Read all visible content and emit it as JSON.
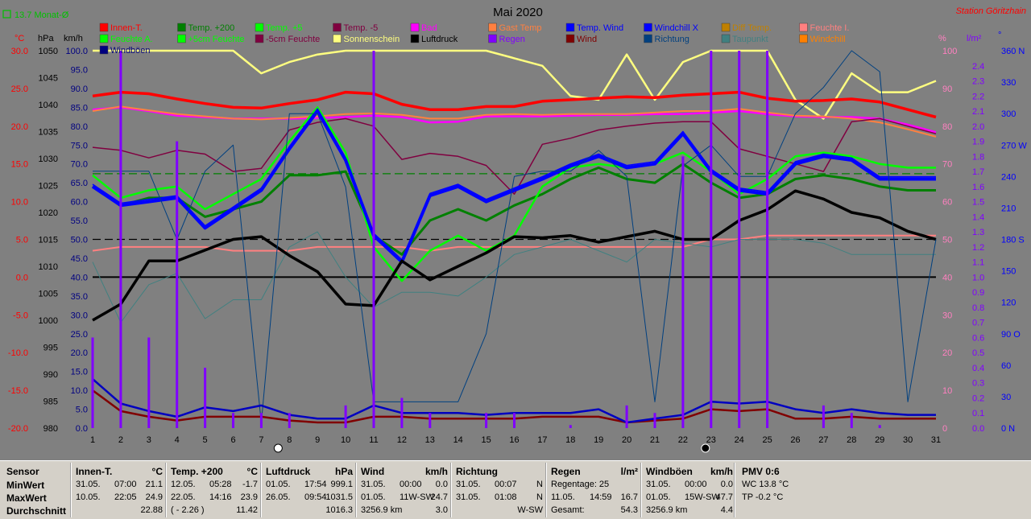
{
  "header": {
    "title": "Mai 2020",
    "station": "Station Göritzhain",
    "avg_indicator": "13.7 Monat-Ø"
  },
  "units": {
    "temp": "°C",
    "pressure": "hPa",
    "wind": "km/h",
    "percent": "%",
    "rain": "l/m²",
    "deg": "°"
  },
  "legend": [
    {
      "label": "Innen-T.",
      "color": "#ff0000"
    },
    {
      "label": "Temp. +200",
      "color": "#008000"
    },
    {
      "label": "Temp. +5",
      "color": "#00ff00"
    },
    {
      "label": "Temp. -5",
      "color": "#800040"
    },
    {
      "label": "Bad",
      "color": "#ff00ff"
    },
    {
      "label": "Gast Temp",
      "color": "#ff8040"
    },
    {
      "label": "Temp. Wind",
      "color": "#0000ff"
    },
    {
      "label": "Windchill X",
      "color": "#0000ff"
    },
    {
      "label": "Diff Temp.",
      "color": "#c08000"
    },
    {
      "label": "Feuchte I.",
      "color": "#ff8080"
    },
    {
      "label": "Feuchte A.",
      "color": "#00ff00"
    },
    {
      "label": "+5cm Feuchte",
      "color": "#00ff00"
    },
    {
      "label": "-5cm Feuchte",
      "color": "#800040"
    },
    {
      "label": "Sonnenschein",
      "color": "#ffff80"
    },
    {
      "label": "Luftdruck",
      "color": "#000000"
    },
    {
      "label": "Regen",
      "color": "#8000ff"
    },
    {
      "label": "Wind",
      "color": "#800000"
    },
    {
      "label": "Richtung",
      "color": "#004080"
    },
    {
      "label": "Taupunkt",
      "color": "#408080"
    },
    {
      "label": "Windchill",
      "color": "#ff8000"
    },
    {
      "label": "Windböen",
      "color": "#000080"
    }
  ],
  "axes": {
    "temp_ticks": [
      "30.0",
      "25.0",
      "20.0",
      "15.0",
      "10.0",
      "5.0",
      "0.0",
      "-5.0",
      "-10.0",
      "-15.0",
      "-20.0"
    ],
    "pressure_ticks": [
      "1050",
      "1045",
      "1040",
      "1035",
      "1030",
      "1025",
      "1020",
      "1015",
      "1010",
      "1005",
      "1000",
      "995",
      "990",
      "985",
      "980"
    ],
    "wind_ticks": [
      "100.0",
      "95.0",
      "90.0",
      "85.0",
      "80.0",
      "75.0",
      "70.0",
      "65.0",
      "60.0",
      "55.0",
      "50.0",
      "45.0",
      "40.0",
      "35.0",
      "30.0",
      "25.0",
      "20.0",
      "15.0",
      "10.0",
      "5.0",
      "0.0"
    ],
    "percent_ticks": [
      "100",
      "90",
      "80",
      "70",
      "60",
      "50",
      "40",
      "30",
      "20",
      "10",
      "0"
    ],
    "rain_ticks": [
      "2.4",
      "2.3",
      "2.2",
      "2.1",
      "2.0",
      "1.9",
      "1.8",
      "1.7",
      "1.6",
      "1.5",
      "1.4",
      "1.3",
      "1.2",
      "1.1",
      "1.0",
      "0.9",
      "0.8",
      "0.7",
      "0.6",
      "0.5",
      "0.4",
      "0.3",
      "0.2",
      "0.1",
      "0.0"
    ],
    "dir_ticks": [
      "360 N",
      "330",
      "300",
      "270 W",
      "240",
      "210",
      "180 S",
      "150",
      "120",
      "90 O",
      "60",
      "30",
      "0 N"
    ],
    "days": [
      "1",
      "2",
      "3",
      "4",
      "5",
      "6",
      "7",
      "8",
      "9",
      "10",
      "11",
      "12",
      "13",
      "14",
      "15",
      "16",
      "17",
      "18",
      "19",
      "20",
      "21",
      "22",
      "23",
      "24",
      "25",
      "26",
      "27",
      "28",
      "29",
      "30",
      "31"
    ]
  },
  "chart_data": {
    "type": "line",
    "title": "Mai 2020",
    "x": [
      1,
      2,
      3,
      4,
      5,
      6,
      7,
      8,
      9,
      10,
      11,
      12,
      13,
      14,
      15,
      16,
      17,
      18,
      19,
      20,
      21,
      22,
      23,
      24,
      25,
      26,
      27,
      28,
      29,
      30,
      31
    ],
    "xlim": [
      1,
      31
    ],
    "y_temp_lim": [
      -20,
      30
    ],
    "y_pressure_lim": [
      980,
      1050
    ],
    "y_wind_lim": [
      0,
      100
    ],
    "y_percent_lim": [
      0,
      100
    ],
    "y_rain_lim": [
      0,
      2.5
    ],
    "y_dir_lim": [
      0,
      360
    ],
    "series": [
      {
        "name": "Sonnenschein",
        "axis": "percent",
        "color": "#ffff80",
        "width": 2.5,
        "values": [
          100,
          100,
          100,
          100,
          100,
          100,
          94,
          97,
          99,
          100,
          100,
          100,
          100,
          100,
          100,
          98,
          96,
          88,
          87,
          99,
          87,
          97,
          100,
          100,
          100,
          87,
          82,
          94,
          89,
          89,
          92
        ]
      },
      {
        "name": "Innen-T.",
        "axis": "temp",
        "color": "#ff0000",
        "width": 3.5,
        "values": [
          24.0,
          24.5,
          24.3,
          23.6,
          23.0,
          22.5,
          22.4,
          23.0,
          23.5,
          24.5,
          24.3,
          22.9,
          22.2,
          22.2,
          22.6,
          22.6,
          23.3,
          23.5,
          23.7,
          23.9,
          23.8,
          24.1,
          24.3,
          24.5,
          23.7,
          23.3,
          23.4,
          23.6,
          23.2,
          22.2,
          21.2
        ]
      },
      {
        "name": "Bad",
        "axis": "temp",
        "color": "#ff00ff",
        "width": 2.5,
        "values": [
          22.2,
          22.5,
          22.0,
          21.4,
          21.2,
          21.0,
          21.0,
          21.0,
          21.1,
          21.2,
          21.4,
          21.2,
          20.5,
          20.6,
          21.3,
          21.3,
          21.3,
          21.4,
          21.5,
          21.5,
          21.6,
          21.6,
          21.8,
          22.0,
          21.6,
          21.3,
          21.2,
          21.2,
          21.0,
          20.2,
          19.2
        ]
      },
      {
        "name": "Gast Temp",
        "axis": "temp",
        "color": "#ff8040",
        "width": 2,
        "values": [
          22.0,
          22.6,
          22.1,
          21.6,
          21.3,
          21.0,
          20.9,
          21.1,
          21.3,
          21.6,
          21.7,
          21.5,
          21.0,
          21.0,
          21.5,
          21.6,
          21.5,
          21.6,
          21.6,
          21.6,
          21.8,
          22.0,
          22.0,
          22.3,
          21.8,
          21.4,
          21.3,
          21.0,
          20.5,
          19.6,
          18.6
        ]
      },
      {
        "name": "Feuchte I.",
        "axis": "percent",
        "color": "#ff8080",
        "width": 2,
        "values": [
          47,
          48,
          48,
          48,
          48,
          47,
          47,
          47,
          48,
          48,
          48,
          48,
          47,
          48,
          48,
          48,
          48,
          48,
          48,
          48,
          48,
          48,
          50,
          50,
          51,
          51,
          51,
          51,
          51,
          51,
          51
        ]
      },
      {
        "name": "Temp. -5",
        "axis": "temp",
        "color": "#800040",
        "width": 1.5,
        "values": [
          17.2,
          16.8,
          15.8,
          16.8,
          16.3,
          14.0,
          14.4,
          19.5,
          20.5,
          21.0,
          20.0,
          15.6,
          16.4,
          16.0,
          14.8,
          11.0,
          17.6,
          18.4,
          19.5,
          20.0,
          20.4,
          20.6,
          20.6,
          17.0,
          16.0,
          15.0,
          14.0,
          20.6,
          21.0,
          20.0,
          19.0
        ]
      },
      {
        "name": "Temp. +200",
        "axis": "temp",
        "color": "#008000",
        "width": 3,
        "values": [
          12.0,
          9.5,
          10.5,
          10.5,
          8.0,
          9.0,
          10.0,
          13.5,
          13.5,
          14.0,
          5.5,
          3.0,
          7.5,
          9.0,
          7.5,
          9.5,
          11.0,
          13.0,
          14.5,
          13.0,
          12.5,
          15.0,
          12.5,
          10.5,
          11.0,
          13.0,
          13.5,
          13.0,
          12.0,
          11.5,
          11.5
        ]
      },
      {
        "name": "Temp. +5",
        "axis": "temp",
        "color": "#00ff00",
        "width": 2.5,
        "values": [
          13.5,
          10.5,
          11.5,
          12.0,
          9.0,
          11.0,
          13.0,
          18.0,
          22.5,
          16.5,
          4.0,
          -0.5,
          3.5,
          5.5,
          3.5,
          5.5,
          12.0,
          14.5,
          15.0,
          14.5,
          15.0,
          16.5,
          14.0,
          11.0,
          13.0,
          16.0,
          16.5,
          16.0,
          15.0,
          14.5,
          14.5
        ]
      },
      {
        "name": "Windchill X",
        "axis": "temp",
        "color": "#0000ff",
        "width": 4,
        "values": [
          12.0,
          9.5,
          10.0,
          10.5,
          6.5,
          9.0,
          11.5,
          17.0,
          22.0,
          15.5,
          5.5,
          2.0,
          10.8,
          12.0,
          10.0,
          11.5,
          13.0,
          14.7,
          16.0,
          14.5,
          15.0,
          19.0,
          14.0,
          11.5,
          11.0,
          15.0,
          16.0,
          15.5,
          13.0,
          13.0,
          13.0
        ]
      },
      {
        "name": "Temp. Wind",
        "axis": "temp",
        "color": "#0000ff",
        "width": 1.5,
        "values": [
          12.3,
          9.8,
          10.3,
          10.8,
          6.8,
          9.3,
          11.8,
          17.3,
          22.3,
          15.8,
          5.8,
          2.3,
          11.1,
          12.3,
          10.3,
          11.8,
          13.3,
          15.0,
          16.3,
          14.8,
          15.3,
          19.3,
          14.3,
          11.8,
          11.3,
          15.3,
          16.3,
          15.8,
          13.3,
          13.3,
          13.3
        ]
      },
      {
        "name": "Taupunkt",
        "axis": "temp",
        "color": "#408080",
        "width": 1,
        "values": [
          2.0,
          -6.0,
          -1.0,
          0.5,
          -5.5,
          -3.0,
          -3.0,
          4.0,
          6.0,
          0.0,
          -4.0,
          -2.0,
          -2.0,
          -2.5,
          0.0,
          3.0,
          4.0,
          5.0,
          3.5,
          2.0,
          5.0,
          4.5,
          4.0,
          5.0,
          5.0,
          5.0,
          4.5,
          3.0,
          3.0,
          3.0,
          3.0
        ]
      },
      {
        "name": "Luftdruck",
        "axis": "pressure",
        "color": "#000000",
        "width": 3.5,
        "values": [
          1000,
          1003,
          1011,
          1011,
          1013,
          1015,
          1015.5,
          1012,
          1009,
          1003,
          1002.7,
          1011,
          1007.5,
          1010,
          1012.5,
          1015.5,
          1015.3,
          1015.7,
          1014.5,
          1015.5,
          1016.5,
          1015.0,
          1015.0,
          1018.5,
          1020.5,
          1024,
          1022.5,
          1020.0,
          1019.0,
          1016.5,
          1015.0
        ]
      },
      {
        "name": "Richtung",
        "axis": "dir",
        "color": "#004080",
        "width": 1,
        "values": [
          245,
          245,
          245,
          180,
          245,
          270,
          5,
          300,
          300,
          230,
          25,
          25,
          25,
          25,
          90,
          240,
          245,
          245,
          265,
          240,
          25,
          250,
          270,
          240,
          240,
          300,
          325,
          360,
          340,
          25,
          180
        ]
      },
      {
        "name": "Wind",
        "axis": "wind",
        "color": "#800000",
        "width": 2.5,
        "values": [
          10.0,
          4.5,
          3.0,
          2.0,
          3.0,
          3.0,
          3.0,
          2.0,
          1.5,
          1.5,
          3.0,
          3.0,
          2.5,
          2.5,
          2.5,
          2.5,
          3.0,
          3.0,
          3.0,
          1.5,
          2.0,
          2.5,
          5.0,
          4.5,
          5.0,
          2.5,
          2.5,
          3.0,
          2.5,
          2.5,
          2.5
        ]
      },
      {
        "name": "Windböen",
        "axis": "wind",
        "color": "#0000c0",
        "width": 2.5,
        "values": [
          13.0,
          6.5,
          4.5,
          3.0,
          5.5,
          4.5,
          6.0,
          3.5,
          2.5,
          2.5,
          6.0,
          4.0,
          4.0,
          4.0,
          3.5,
          4.0,
          4.0,
          4.0,
          5.0,
          1.5,
          2.5,
          3.5,
          7.0,
          6.5,
          7.0,
          5.0,
          4.0,
          5.0,
          4.0,
          3.5,
          3.5
        ]
      }
    ],
    "rain_bars": [
      {
        "day": 1,
        "value": 0.6
      },
      {
        "day": 2,
        "value": 2.5
      },
      {
        "day": 3,
        "value": 0.6
      },
      {
        "day": 4,
        "value": 1.9
      },
      {
        "day": 5,
        "value": 0.4
      },
      {
        "day": 6,
        "value": 0.1
      },
      {
        "day": 7,
        "value": 0.1
      },
      {
        "day": 8,
        "value": 0.1
      },
      {
        "day": 10,
        "value": 0.15
      },
      {
        "day": 11,
        "value": 2.5
      },
      {
        "day": 12,
        "value": 0.2
      },
      {
        "day": 13,
        "value": 0.1
      },
      {
        "day": 15,
        "value": 0.1
      },
      {
        "day": 16,
        "value": 0.1
      },
      {
        "day": 18,
        "value": 0.02
      },
      {
        "day": 20,
        "value": 0.15
      },
      {
        "day": 21,
        "value": 0.1
      },
      {
        "day": 22,
        "value": 1.8
      },
      {
        "day": 23,
        "value": 2.5
      },
      {
        "day": 24,
        "value": 2.5
      },
      {
        "day": 25,
        "value": 2.5
      },
      {
        "day": 27,
        "value": 0.15
      },
      {
        "day": 28,
        "value": 0.1
      },
      {
        "day": 29,
        "value": 0.02
      }
    ],
    "reference_lines": [
      {
        "axis": "temp",
        "value": 0,
        "color": "#000000",
        "style": "solid"
      },
      {
        "axis": "temp",
        "value": 5,
        "color": "#000000",
        "style": "dashed"
      },
      {
        "axis": "temp",
        "value": 13.7,
        "color": "#008000",
        "style": "dashed"
      }
    ],
    "moon_markers": [
      {
        "day": 7.6,
        "phase": "full"
      },
      {
        "day": 22.8,
        "phase": "new"
      }
    ]
  },
  "stats": {
    "row_labels": {
      "sensor": "Sensor",
      "min": "MinWert",
      "max": "MaxWert",
      "avg": "Durchschnitt"
    },
    "blocks": [
      {
        "key": "innen",
        "title": "Innen-T.",
        "unit": "°C",
        "min": {
          "date": "31.05.",
          "time": "07:00",
          "value": "21.1"
        },
        "max": {
          "date": "10.05.",
          "time": "22:05",
          "value": "24.9"
        },
        "avg": {
          "extra": "",
          "value": "22.88"
        }
      },
      {
        "key": "temp200",
        "title": "Temp. +200",
        "unit": "°C",
        "min": {
          "date": "12.05.",
          "time": "05:28",
          "value": "-1.7"
        },
        "max": {
          "date": "22.05.",
          "time": "14:16",
          "value": "23.9"
        },
        "avg": {
          "extra": "( - 2.26 )",
          "value": "11.42"
        }
      },
      {
        "key": "luftdruck",
        "title": "Luftdruck",
        "unit": "hPa",
        "min": {
          "date": "01.05.",
          "time": "17:54",
          "value": "999.1"
        },
        "max": {
          "date": "26.05.",
          "time": "09:54",
          "value": "1031.5"
        },
        "avg": {
          "extra": "",
          "value": "1016.3"
        }
      },
      {
        "key": "wind",
        "title": "Wind",
        "unit": "km/h",
        "min": {
          "date": "31.05.",
          "time": "00:00",
          "value": "0.0"
        },
        "max": {
          "date": "01.05.",
          "time": "11W-SW",
          "value": "24.7"
        },
        "avg": {
          "extra": "3256.9 km",
          "value": "3.0"
        }
      },
      {
        "key": "richtung",
        "title": "Richtung",
        "unit": "",
        "min": {
          "date": "31.05.",
          "time": "00:07",
          "value": "N"
        },
        "max": {
          "date": "31.05.",
          "time": "01:08",
          "value": "N"
        },
        "avg": {
          "extra": "",
          "value": "W-SW"
        }
      },
      {
        "key": "regen",
        "title": "Regen",
        "unit": "l/m²",
        "min": {
          "date": "Regentage: 25",
          "time": "",
          "value": ""
        },
        "max": {
          "date": "11.05.",
          "time": "14:59",
          "value": "16.7"
        },
        "avg": {
          "extra": "Gesamt:",
          "value": "54.3"
        }
      },
      {
        "key": "windboeen",
        "title": "Windböen",
        "unit": "km/h",
        "min": {
          "date": "31.05.",
          "time": "00:00",
          "value": "0.0"
        },
        "max": {
          "date": "01.05.",
          "time": "15W-SW",
          "value": "47.7"
        },
        "avg": {
          "extra": "3256.9 km",
          "value": "4.4"
        }
      }
    ],
    "pmv": {
      "title": "PMV 0:6",
      "wc": "WC 13.8 °C",
      "tp": "TP -0.2 °C"
    }
  }
}
